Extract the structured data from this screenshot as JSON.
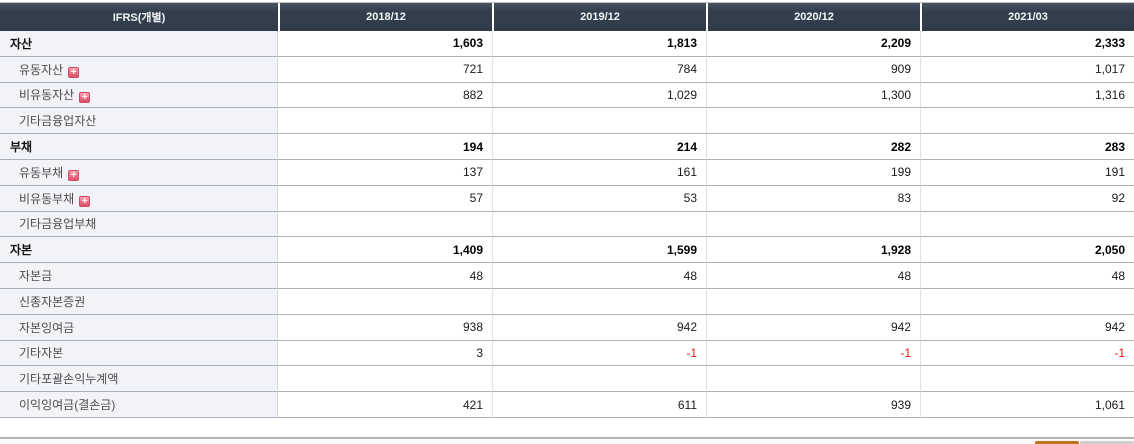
{
  "table": {
    "header": {
      "label": "IFRS(개별)",
      "columns": [
        "2018/12",
        "2019/12",
        "2020/12",
        "2021/03"
      ]
    },
    "rows": [
      {
        "label": "자산",
        "type": "section",
        "expandable": false,
        "values": [
          "1,603",
          "1,813",
          "2,209",
          "2,333"
        ]
      },
      {
        "label": "유동자산",
        "type": "sub",
        "expandable": true,
        "values": [
          "721",
          "784",
          "909",
          "1,017"
        ]
      },
      {
        "label": "비유동자산",
        "type": "sub",
        "expandable": true,
        "values": [
          "882",
          "1,029",
          "1,300",
          "1,316"
        ]
      },
      {
        "label": "기타금융업자산",
        "type": "sub",
        "expandable": false,
        "values": [
          "",
          "",
          "",
          ""
        ]
      },
      {
        "label": "부채",
        "type": "section",
        "expandable": false,
        "values": [
          "194",
          "214",
          "282",
          "283"
        ]
      },
      {
        "label": "유동부채",
        "type": "sub",
        "expandable": true,
        "values": [
          "137",
          "161",
          "199",
          "191"
        ]
      },
      {
        "label": "비유동부채",
        "type": "sub",
        "expandable": true,
        "values": [
          "57",
          "53",
          "83",
          "92"
        ]
      },
      {
        "label": "기타금융업부채",
        "type": "sub",
        "expandable": false,
        "values": [
          "",
          "",
          "",
          ""
        ]
      },
      {
        "label": "자본",
        "type": "section",
        "expandable": false,
        "values": [
          "1,409",
          "1,599",
          "1,928",
          "2,050"
        ]
      },
      {
        "label": "자본금",
        "type": "sub",
        "expandable": false,
        "values": [
          "48",
          "48",
          "48",
          "48"
        ]
      },
      {
        "label": "신종자본증권",
        "type": "sub",
        "expandable": false,
        "values": [
          "",
          "",
          "",
          ""
        ]
      },
      {
        "label": "자본잉여금",
        "type": "sub",
        "expandable": false,
        "values": [
          "938",
          "942",
          "942",
          "942"
        ]
      },
      {
        "label": "기타자본",
        "type": "sub",
        "expandable": false,
        "values": [
          "3",
          "-1",
          "-1",
          "-1"
        ]
      },
      {
        "label": "기타포괄손익누계액",
        "type": "sub",
        "expandable": false,
        "values": [
          "",
          "",
          "",
          ""
        ]
      },
      {
        "label": "이익잉여금(결손금)",
        "type": "sub",
        "expandable": false,
        "values": [
          "421",
          "611",
          "939",
          "1,061"
        ]
      }
    ]
  },
  "icons": {
    "expand_plus": "+"
  },
  "colors": {
    "header_bg": "#333f4d",
    "header_text": "#f2f5f8",
    "label_column_bg": "#f1f3f8",
    "row_border": "#a9b1bb",
    "negative_value": "#e8160c",
    "plus_icon_bg": "#e05064",
    "bottom_button_orange": "#c0731d",
    "bottom_button_gray": "#cfcfcf"
  }
}
